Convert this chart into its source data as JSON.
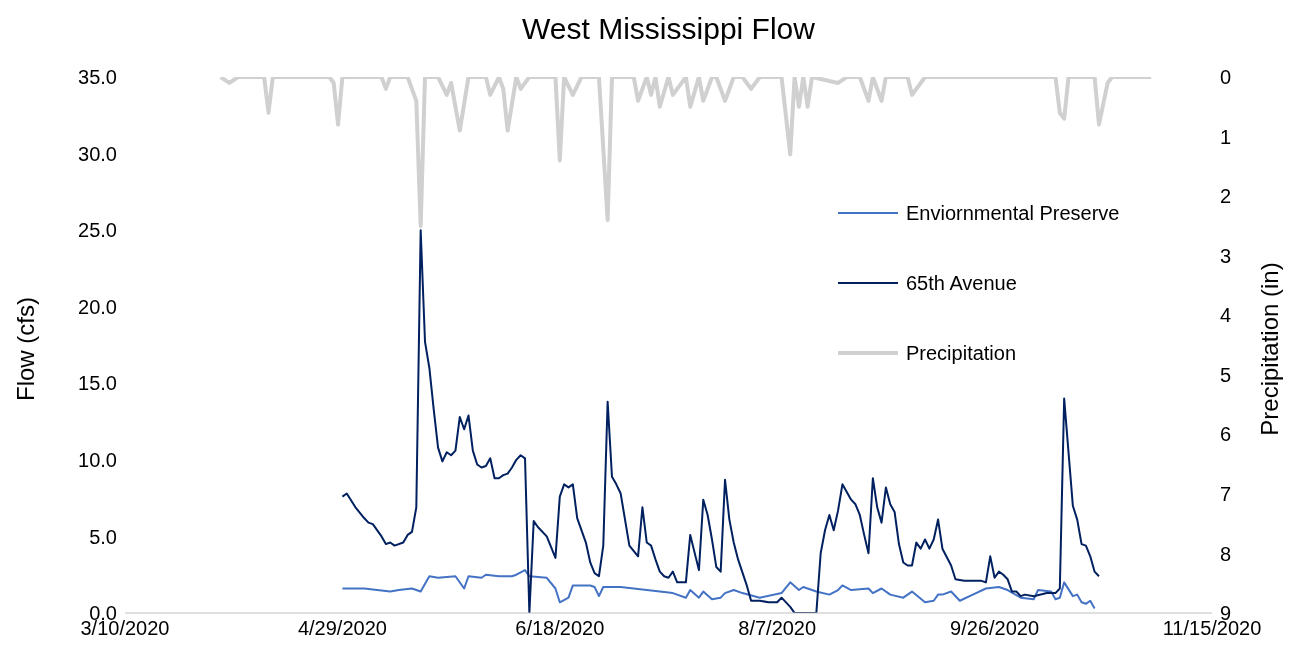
{
  "chart_data": {
    "type": "line",
    "title": "West Mississippi Flow",
    "ylabel": "Flow (cfs)",
    "y2label": "Precipitation (in)",
    "xlim": [
      "2020-03-10",
      "2020-11-15"
    ],
    "xticks": [
      {
        "value": "2020-03-10",
        "label": "3/10/2020"
      },
      {
        "value": "2020-04-29",
        "label": "4/29/2020"
      },
      {
        "value": "2020-06-18",
        "label": "6/18/2020"
      },
      {
        "value": "2020-08-07",
        "label": "8/7/2020"
      },
      {
        "value": "2020-09-26",
        "label": "9/26/2020"
      },
      {
        "value": "2020-11-15",
        "label": "11/15/2020"
      }
    ],
    "ylim": [
      0,
      35
    ],
    "yticks": [
      {
        "value": 0,
        "label": "0.0"
      },
      {
        "value": 5,
        "label": "5.0"
      },
      {
        "value": 10,
        "label": "10.0"
      },
      {
        "value": 15,
        "label": "15.0"
      },
      {
        "value": 20,
        "label": "20.0"
      },
      {
        "value": 25,
        "label": "25.0"
      },
      {
        "value": 30,
        "label": "30.0"
      },
      {
        "value": 35,
        "label": "35.0"
      }
    ],
    "y2lim": [
      9,
      0
    ],
    "y2ticks": [
      0,
      1,
      2,
      3,
      4,
      5,
      6,
      7,
      8,
      9
    ],
    "grid": false,
    "legend": "right",
    "line_style": "solid",
    "series": [
      {
        "name": "Enviornmental Preserve",
        "color": "#4472c4",
        "x": [
          "2020-04-29",
          "2020-05-01",
          "2020-05-04",
          "2020-05-07",
          "2020-05-10",
          "2020-05-12",
          "2020-05-15",
          "2020-05-17",
          "2020-05-19",
          "2020-05-21",
          "2020-05-25",
          "2020-05-27",
          "2020-05-28",
          "2020-05-31",
          "2020-06-01",
          "2020-06-04",
          "2020-06-07",
          "2020-06-08",
          "2020-06-10",
          "2020-06-11",
          "2020-06-15",
          "2020-06-17",
          "2020-06-18",
          "2020-06-20",
          "2020-06-21",
          "2020-06-25",
          "2020-06-26",
          "2020-06-27",
          "2020-06-28",
          "2020-07-02",
          "2020-07-08",
          "2020-07-14",
          "2020-07-17",
          "2020-07-18",
          "2020-07-20",
          "2020-07-21",
          "2020-07-23",
          "2020-07-25",
          "2020-07-26",
          "2020-07-28",
          "2020-07-30",
          "2020-08-03",
          "2020-08-08",
          "2020-08-10",
          "2020-08-12",
          "2020-08-13",
          "2020-08-16",
          "2020-08-19",
          "2020-08-21",
          "2020-08-22",
          "2020-08-24",
          "2020-08-28",
          "2020-08-29",
          "2020-08-31",
          "2020-09-02",
          "2020-09-05",
          "2020-09-07",
          "2020-09-10",
          "2020-09-12",
          "2020-09-13",
          "2020-09-14",
          "2020-09-16",
          "2020-09-18",
          "2020-09-21",
          "2020-09-24",
          "2020-09-27",
          "2020-09-29",
          "2020-10-02",
          "2020-10-05",
          "2020-10-06",
          "2020-10-09",
          "2020-10-10",
          "2020-10-11",
          "2020-10-12",
          "2020-10-14",
          "2020-10-15",
          "2020-10-16",
          "2020-10-17",
          "2020-10-18",
          "2020-10-19"
        ],
        "values": [
          1.6,
          1.6,
          1.6,
          1.5,
          1.4,
          1.5,
          1.6,
          1.4,
          2.4,
          2.3,
          2.4,
          1.6,
          2.4,
          2.3,
          2.5,
          2.4,
          2.4,
          2.5,
          2.8,
          2.4,
          2.3,
          1.6,
          0.7,
          1.0,
          1.8,
          1.8,
          1.7,
          1.1,
          1.7,
          1.7,
          1.5,
          1.3,
          1.0,
          1.5,
          1.0,
          1.4,
          0.9,
          1.0,
          1.3,
          1.5,
          1.3,
          1.0,
          1.3,
          2.0,
          1.5,
          1.7,
          1.4,
          1.2,
          1.5,
          1.8,
          1.5,
          1.6,
          1.3,
          1.6,
          1.2,
          1.0,
          1.4,
          0.7,
          0.8,
          1.2,
          1.2,
          1.4,
          0.8,
          1.2,
          1.6,
          1.7,
          1.5,
          1.0,
          0.9,
          1.5,
          1.4,
          0.9,
          1.0,
          2.0,
          1.1,
          1.2,
          0.7,
          0.6,
          0.8,
          0.3
        ]
      },
      {
        "name": "65th Avenue",
        "color": "#002060",
        "x": [
          "2020-04-29",
          "2020-04-30",
          "2020-05-02",
          "2020-05-04",
          "2020-05-05",
          "2020-05-06",
          "2020-05-08",
          "2020-05-09",
          "2020-05-10",
          "2020-05-11",
          "2020-05-13",
          "2020-05-14",
          "2020-05-15",
          "2020-05-16",
          "2020-05-17",
          "2020-05-18",
          "2020-05-19",
          "2020-05-20",
          "2020-05-21",
          "2020-05-22",
          "2020-05-23",
          "2020-05-24",
          "2020-05-25",
          "2020-05-26",
          "2020-05-27",
          "2020-05-28",
          "2020-05-29",
          "2020-05-30",
          "2020-05-31",
          "2020-06-01",
          "2020-06-02",
          "2020-06-03",
          "2020-06-04",
          "2020-06-05",
          "2020-06-06",
          "2020-06-07",
          "2020-06-08",
          "2020-06-09",
          "2020-06-10",
          "2020-06-11",
          "2020-06-12",
          "2020-06-13",
          "2020-06-15",
          "2020-06-16",
          "2020-06-17",
          "2020-06-18",
          "2020-06-19",
          "2020-06-20",
          "2020-06-21",
          "2020-06-22",
          "2020-06-24",
          "2020-06-25",
          "2020-06-26",
          "2020-06-27",
          "2020-06-28",
          "2020-06-29",
          "2020-06-30",
          "2020-07-01",
          "2020-07-02",
          "2020-07-03",
          "2020-07-04",
          "2020-07-06",
          "2020-07-07",
          "2020-07-08",
          "2020-07-09",
          "2020-07-10",
          "2020-07-11",
          "2020-07-12",
          "2020-07-13",
          "2020-07-14",
          "2020-07-15",
          "2020-07-17",
          "2020-07-18",
          "2020-07-20",
          "2020-07-21",
          "2020-07-22",
          "2020-07-23",
          "2020-07-24",
          "2020-07-25",
          "2020-07-26",
          "2020-07-27",
          "2020-07-28",
          "2020-07-29",
          "2020-07-31",
          "2020-08-01",
          "2020-08-03",
          "2020-08-05",
          "2020-08-07",
          "2020-08-08",
          "2020-08-10",
          "2020-08-11",
          "2020-08-16",
          "2020-08-17",
          "2020-08-18",
          "2020-08-19",
          "2020-08-20",
          "2020-08-21",
          "2020-08-22",
          "2020-08-24",
          "2020-08-25",
          "2020-08-26",
          "2020-08-27",
          "2020-08-28",
          "2020-08-29",
          "2020-08-30",
          "2020-08-31",
          "2020-09-01",
          "2020-09-02",
          "2020-09-03",
          "2020-09-04",
          "2020-09-05",
          "2020-09-06",
          "2020-09-07",
          "2020-09-08",
          "2020-09-09",
          "2020-09-10",
          "2020-09-11",
          "2020-09-12",
          "2020-09-13",
          "2020-09-14",
          "2020-09-16",
          "2020-09-17",
          "2020-09-19",
          "2020-09-23",
          "2020-09-24",
          "2020-09-25",
          "2020-09-26",
          "2020-09-27",
          "2020-09-28",
          "2020-09-29",
          "2020-09-30",
          "2020-10-01",
          "2020-10-02",
          "2020-10-03",
          "2020-10-05",
          "2020-10-08",
          "2020-10-10",
          "2020-10-11",
          "2020-10-12",
          "2020-10-14",
          "2020-10-15",
          "2020-10-16",
          "2020-10-17",
          "2020-10-18",
          "2020-10-19",
          "2020-10-20"
        ],
        "values": [
          7.6,
          7.8,
          6.9,
          6.2,
          5.9,
          5.8,
          5.0,
          4.5,
          4.6,
          4.4,
          4.6,
          5.1,
          5.3,
          6.9,
          25.0,
          17.7,
          16.0,
          13.3,
          10.8,
          9.9,
          10.5,
          10.3,
          10.6,
          12.8,
          12.0,
          12.9,
          10.6,
          9.7,
          9.5,
          9.6,
          10.1,
          8.8,
          8.8,
          9.0,
          9.1,
          9.5,
          10.0,
          10.3,
          10.1,
          0.0,
          6.0,
          5.6,
          5.0,
          4.3,
          3.6,
          7.6,
          8.4,
          8.2,
          8.4,
          6.2,
          4.6,
          3.3,
          2.6,
          2.4,
          4.4,
          13.8,
          8.9,
          8.4,
          7.8,
          6.1,
          4.4,
          3.7,
          6.9,
          4.6,
          4.4,
          3.5,
          2.7,
          2.4,
          2.3,
          2.7,
          2.0,
          2.0,
          5.1,
          2.8,
          7.4,
          6.4,
          4.8,
          3.0,
          2.7,
          8.7,
          6.1,
          4.6,
          3.5,
          1.8,
          0.8,
          0.8,
          0.7,
          0.7,
          1.0,
          0.4,
          0.0,
          0.0,
          3.9,
          5.4,
          6.4,
          5.4,
          6.7,
          8.4,
          7.4,
          7.1,
          6.4,
          5.1,
          3.9,
          8.8,
          6.9,
          5.9,
          8.2,
          7.1,
          6.6,
          4.5,
          3.3,
          3.1,
          3.1,
          4.6,
          4.2,
          4.8,
          4.2,
          4.8,
          6.1,
          4.2,
          3.1,
          2.2,
          2.1,
          2.1,
          2.0,
          3.7,
          2.3,
          2.7,
          2.5,
          2.2,
          1.4,
          1.4,
          1.1,
          1.2,
          1.1,
          1.3,
          1.3,
          1.6,
          14.0,
          7.0,
          6.1,
          4.5,
          4.4,
          3.7,
          2.7,
          2.4
        ]
      },
      {
        "name": "Precipitation",
        "color": "#d0d0d0",
        "axis": "y2",
        "x": [
          "2020-04-01",
          "2020-04-03",
          "2020-04-05",
          "2020-04-11",
          "2020-04-12",
          "2020-04-13",
          "2020-04-26",
          "2020-04-27",
          "2020-04-28",
          "2020-04-29",
          "2020-05-08",
          "2020-05-09",
          "2020-05-10",
          "2020-05-14",
          "2020-05-16",
          "2020-05-17",
          "2020-05-18",
          "2020-05-21",
          "2020-05-23",
          "2020-05-24",
          "2020-05-26",
          "2020-05-28",
          "2020-06-01",
          "2020-06-02",
          "2020-06-04",
          "2020-06-05",
          "2020-06-06",
          "2020-06-08",
          "2020-06-09",
          "2020-06-11",
          "2020-06-17",
          "2020-06-18",
          "2020-06-19",
          "2020-06-21",
          "2020-06-23",
          "2020-06-27",
          "2020-06-29",
          "2020-06-30",
          "2020-07-05",
          "2020-07-06",
          "2020-07-08",
          "2020-07-09",
          "2020-07-10",
          "2020-07-11",
          "2020-07-13",
          "2020-07-14",
          "2020-07-17",
          "2020-07-18",
          "2020-07-20",
          "2020-07-21",
          "2020-07-23",
          "2020-07-24",
          "2020-07-26",
          "2020-07-28",
          "2020-07-30",
          "2020-08-01",
          "2020-08-03",
          "2020-08-08",
          "2020-08-10",
          "2020-08-11",
          "2020-08-12",
          "2020-08-13",
          "2020-08-14",
          "2020-08-15",
          "2020-08-21",
          "2020-08-23",
          "2020-08-26",
          "2020-08-28",
          "2020-08-29",
          "2020-08-31",
          "2020-09-01",
          "2020-09-06",
          "2020-09-07",
          "2020-09-09",
          "2020-09-10",
          "2020-09-21",
          "2020-09-30",
          "2020-10-10",
          "2020-10-11",
          "2020-10-12",
          "2020-10-13",
          "2020-10-19",
          "2020-10-20",
          "2020-10-22",
          "2020-10-23",
          "2020-11-01"
        ],
        "values": [
          0,
          0.1,
          0,
          0,
          0.6,
          0,
          0,
          0.1,
          0.8,
          0,
          0,
          0.2,
          0,
          0,
          0.4,
          2.5,
          0,
          0,
          0.3,
          0.1,
          0.9,
          0,
          0,
          0.3,
          0,
          0.2,
          0.9,
          0,
          0.2,
          0,
          0,
          1.4,
          0,
          0.3,
          0,
          0,
          2.4,
          0,
          0,
          0.4,
          0,
          0.3,
          0,
          0.5,
          0,
          0.3,
          0,
          0.5,
          0,
          0.4,
          0,
          0,
          0.4,
          0,
          0,
          0.2,
          0,
          0,
          1.3,
          0,
          0.5,
          0,
          0.5,
          0,
          0.1,
          0,
          0,
          0.4,
          0,
          0.4,
          0,
          0,
          0.3,
          0.1,
          0,
          0,
          0,
          0,
          0.6,
          0.7,
          0,
          0,
          0.8,
          0.1,
          0,
          0
        ]
      }
    ]
  }
}
